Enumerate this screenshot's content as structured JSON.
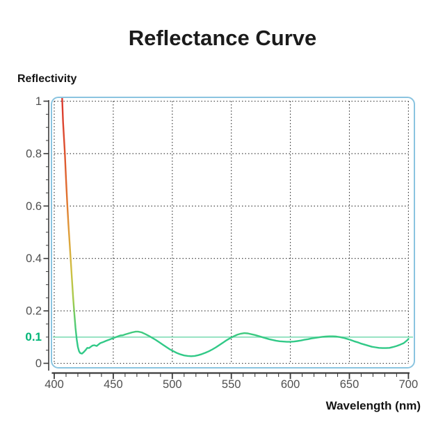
{
  "chart_data": {
    "type": "line",
    "title": "Reflectance Curve",
    "xlabel": "Wavelength (nm)",
    "ylabel": "Reflectivity",
    "xlim": [
      400,
      700
    ],
    "ylim": [
      0,
      1
    ],
    "x_ticks": [
      400,
      450,
      500,
      550,
      600,
      650,
      700
    ],
    "y_ticks": [
      0,
      0.2,
      0.4,
      0.6,
      0.8,
      1
    ],
    "x_minor_tick_step": 10,
    "y_minor_tick_step": 0.05,
    "grid": "dotted-major",
    "legend_position": "none",
    "reference_line": {
      "value": 0.1,
      "label": "0.1"
    },
    "colors": {
      "curve_green": "#31c987",
      "reference_line": "#8de0bd",
      "reference_label": "#00b577",
      "plot_border": "#8ac4e0",
      "grid": "#2f2f2f",
      "axis": "#3a3a3a",
      "tick_label": "#4f4f4f",
      "title_text": "#1b1b1b",
      "curve_gradient": [
        {
          "offset": 0.0,
          "color": "#dc3a30"
        },
        {
          "offset": 0.18,
          "color": "#dd4b2f"
        },
        {
          "offset": 0.4,
          "color": "#e0702f"
        },
        {
          "offset": 0.57,
          "color": "#dfa03a"
        },
        {
          "offset": 0.72,
          "color": "#cfc043"
        },
        {
          "offset": 0.84,
          "color": "#a3cb4d"
        },
        {
          "offset": 0.92,
          "color": "#5fcb6c"
        },
        {
          "offset": 1.0,
          "color": "#31c987"
        }
      ]
    },
    "series": [
      {
        "name": "Reflectance",
        "points": [
          [
            406.3,
            1.06
          ],
          [
            407.5,
            0.92
          ],
          [
            409,
            0.8
          ],
          [
            410,
            0.7
          ],
          [
            411,
            0.61
          ],
          [
            412,
            0.53
          ],
          [
            413,
            0.46
          ],
          [
            414,
            0.39
          ],
          [
            415,
            0.32
          ],
          [
            416,
            0.25
          ],
          [
            417,
            0.19
          ],
          [
            418,
            0.135
          ],
          [
            419,
            0.092
          ],
          [
            420,
            0.062
          ],
          [
            421,
            0.046
          ],
          [
            422,
            0.039
          ],
          [
            423.5,
            0.037
          ],
          [
            425,
            0.043
          ],
          [
            426.5,
            0.05
          ],
          [
            428,
            0.059
          ],
          [
            429.5,
            0.058
          ],
          [
            431,
            0.063
          ],
          [
            432.5,
            0.068
          ],
          [
            434,
            0.069
          ],
          [
            436,
            0.066
          ],
          [
            437.5,
            0.072
          ],
          [
            439,
            0.077
          ],
          [
            441,
            0.08
          ],
          [
            444,
            0.086
          ],
          [
            447,
            0.091
          ],
          [
            450,
            0.096
          ],
          [
            453,
            0.101
          ],
          [
            456,
            0.106
          ],
          [
            458,
            0.107
          ],
          [
            460,
            0.11
          ],
          [
            463,
            0.114
          ],
          [
            466,
            0.118
          ],
          [
            469,
            0.121
          ],
          [
            471,
            0.121
          ],
          [
            474,
            0.118
          ],
          [
            477,
            0.112
          ],
          [
            480,
            0.105
          ],
          [
            483,
            0.097
          ],
          [
            486,
            0.089
          ],
          [
            489,
            0.08
          ],
          [
            492,
            0.071
          ],
          [
            495,
            0.062
          ],
          [
            498,
            0.053
          ],
          [
            501,
            0.046
          ],
          [
            504,
            0.039
          ],
          [
            507,
            0.034
          ],
          [
            510,
            0.03
          ],
          [
            513,
            0.028
          ],
          [
            516,
            0.027
          ],
          [
            519,
            0.028
          ],
          [
            522,
            0.031
          ],
          [
            525,
            0.035
          ],
          [
            528,
            0.04
          ],
          [
            531,
            0.046
          ],
          [
            534,
            0.053
          ],
          [
            537,
            0.061
          ],
          [
            540,
            0.07
          ],
          [
            543,
            0.079
          ],
          [
            546,
            0.088
          ],
          [
            549,
            0.096
          ],
          [
            552,
            0.103
          ],
          [
            555,
            0.109
          ],
          [
            558,
            0.113
          ],
          [
            561,
            0.115
          ],
          [
            564,
            0.114
          ],
          [
            567,
            0.111
          ],
          [
            570,
            0.108
          ],
          [
            573,
            0.104
          ],
          [
            576,
            0.1
          ],
          [
            579,
            0.096
          ],
          [
            582,
            0.092
          ],
          [
            585,
            0.089
          ],
          [
            588,
            0.086
          ],
          [
            591,
            0.084
          ],
          [
            594,
            0.083
          ],
          [
            597,
            0.082
          ],
          [
            600,
            0.082
          ],
          [
            603,
            0.083
          ],
          [
            606,
            0.085
          ],
          [
            609,
            0.087
          ],
          [
            612,
            0.09
          ],
          [
            615,
            0.092
          ],
          [
            618,
            0.095
          ],
          [
            621,
            0.097
          ],
          [
            624,
            0.099
          ],
          [
            627,
            0.101
          ],
          [
            630,
            0.102
          ],
          [
            633,
            0.103
          ],
          [
            636,
            0.103
          ],
          [
            639,
            0.102
          ],
          [
            642,
            0.1
          ],
          [
            645,
            0.097
          ],
          [
            648,
            0.093
          ],
          [
            651,
            0.089
          ],
          [
            654,
            0.084
          ],
          [
            657,
            0.08
          ],
          [
            660,
            0.075
          ],
          [
            663,
            0.071
          ],
          [
            666,
            0.067
          ],
          [
            669,
            0.063
          ],
          [
            672,
            0.061
          ],
          [
            675,
            0.059
          ],
          [
            678,
            0.058
          ],
          [
            681,
            0.058
          ],
          [
            684,
            0.059
          ],
          [
            687,
            0.062
          ],
          [
            690,
            0.066
          ],
          [
            693,
            0.071
          ],
          [
            696,
            0.077
          ],
          [
            699,
            0.088
          ],
          [
            700,
            0.093
          ]
        ]
      }
    ]
  }
}
